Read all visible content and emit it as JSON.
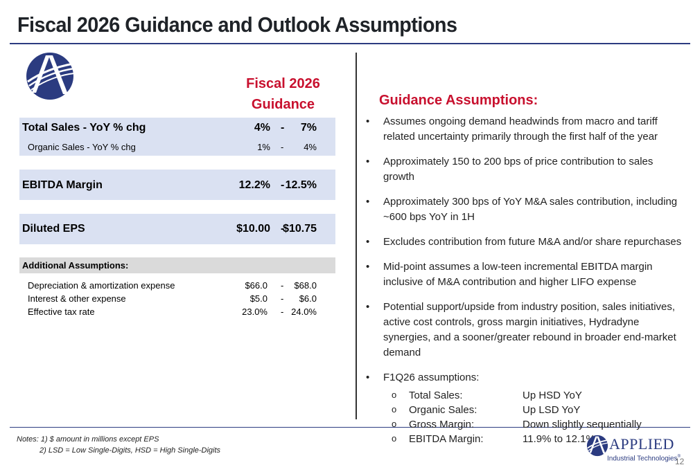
{
  "title": "Fiscal 2026 Guidance and Outlook Assumptions",
  "guidance_header": [
    "Fiscal 2026",
    "Guidance"
  ],
  "metrics": {
    "total_sales": {
      "label": "Total Sales - YoY % chg",
      "low": "4%",
      "sep": "-",
      "high": "7%"
    },
    "organic_sales": {
      "label": "Organic Sales - YoY % chg",
      "low": "1%",
      "sep": "-",
      "high": "4%"
    },
    "ebitda_margin": {
      "label": "EBITDA Margin",
      "low": "12.2%",
      "sep": "-",
      "high": "12.5%"
    },
    "diluted_eps": {
      "label": "Diluted EPS",
      "low": "$10.00",
      "sep": "-",
      "high": "$10.75"
    }
  },
  "additional": {
    "header": "Additional Assumptions:",
    "rows": [
      {
        "label": "Depreciation & amortization expense",
        "low": "$66.0",
        "sep": "-",
        "high": "$68.0"
      },
      {
        "label": "Interest & other expense",
        "low": "$5.0",
        "sep": "-",
        "high": "$6.0"
      },
      {
        "label": "Effective tax rate",
        "low": "23.0%",
        "sep": "-",
        "high": "24.0%"
      }
    ]
  },
  "assumptions": {
    "header": "Guidance Assumptions:",
    "bullet_glyph": "•",
    "sub_glyph": "o",
    "bullets": [
      "Assumes ongoing demand headwinds from macro and tariff related uncertainty primarily through the first half of the year",
      "Approximately 150 to 200 bps of price contribution to sales growth",
      "Approximately 300 bps of YoY M&A sales contribution, including ~600 bps YoY in 1H",
      "Excludes contribution from future M&A and/or share repurchases",
      "Mid-point assumes a low-teen incremental EBITDA margin inclusive of M&A contribution and higher LIFO expense",
      "Potential support/upside from industry position, sales initiatives, active cost controls, gross margin initiatives, Hydradyne synergies, and a sooner/greater rebound in broader end-market demand",
      "F1Q26 assumptions:"
    ],
    "f1q26": [
      {
        "label": "Total Sales:",
        "value": "Up HSD YoY"
      },
      {
        "label": "Organic Sales:",
        "value": "Up LSD YoY"
      },
      {
        "label": "Gross Margin:",
        "value": "Down slightly sequentially"
      },
      {
        "label": "EBITDA Margin:",
        "value": "11.9% to 12.1%"
      }
    ]
  },
  "notes": {
    "line1": "Notes: 1) $ amount in millions except EPS",
    "line2": "2) LSD = Low Single-Digits, HSD = High Single-Digits"
  },
  "brand": {
    "name": "APPLIED",
    "sub": "Industrial Technologies",
    "reg": "®",
    "navy": "#2b3b80"
  },
  "page_number": "12",
  "colors": {
    "accent_red": "#c8102e",
    "band_blue": "#dae1f2",
    "band_gray": "#dadada",
    "navy": "#2b3b80"
  }
}
